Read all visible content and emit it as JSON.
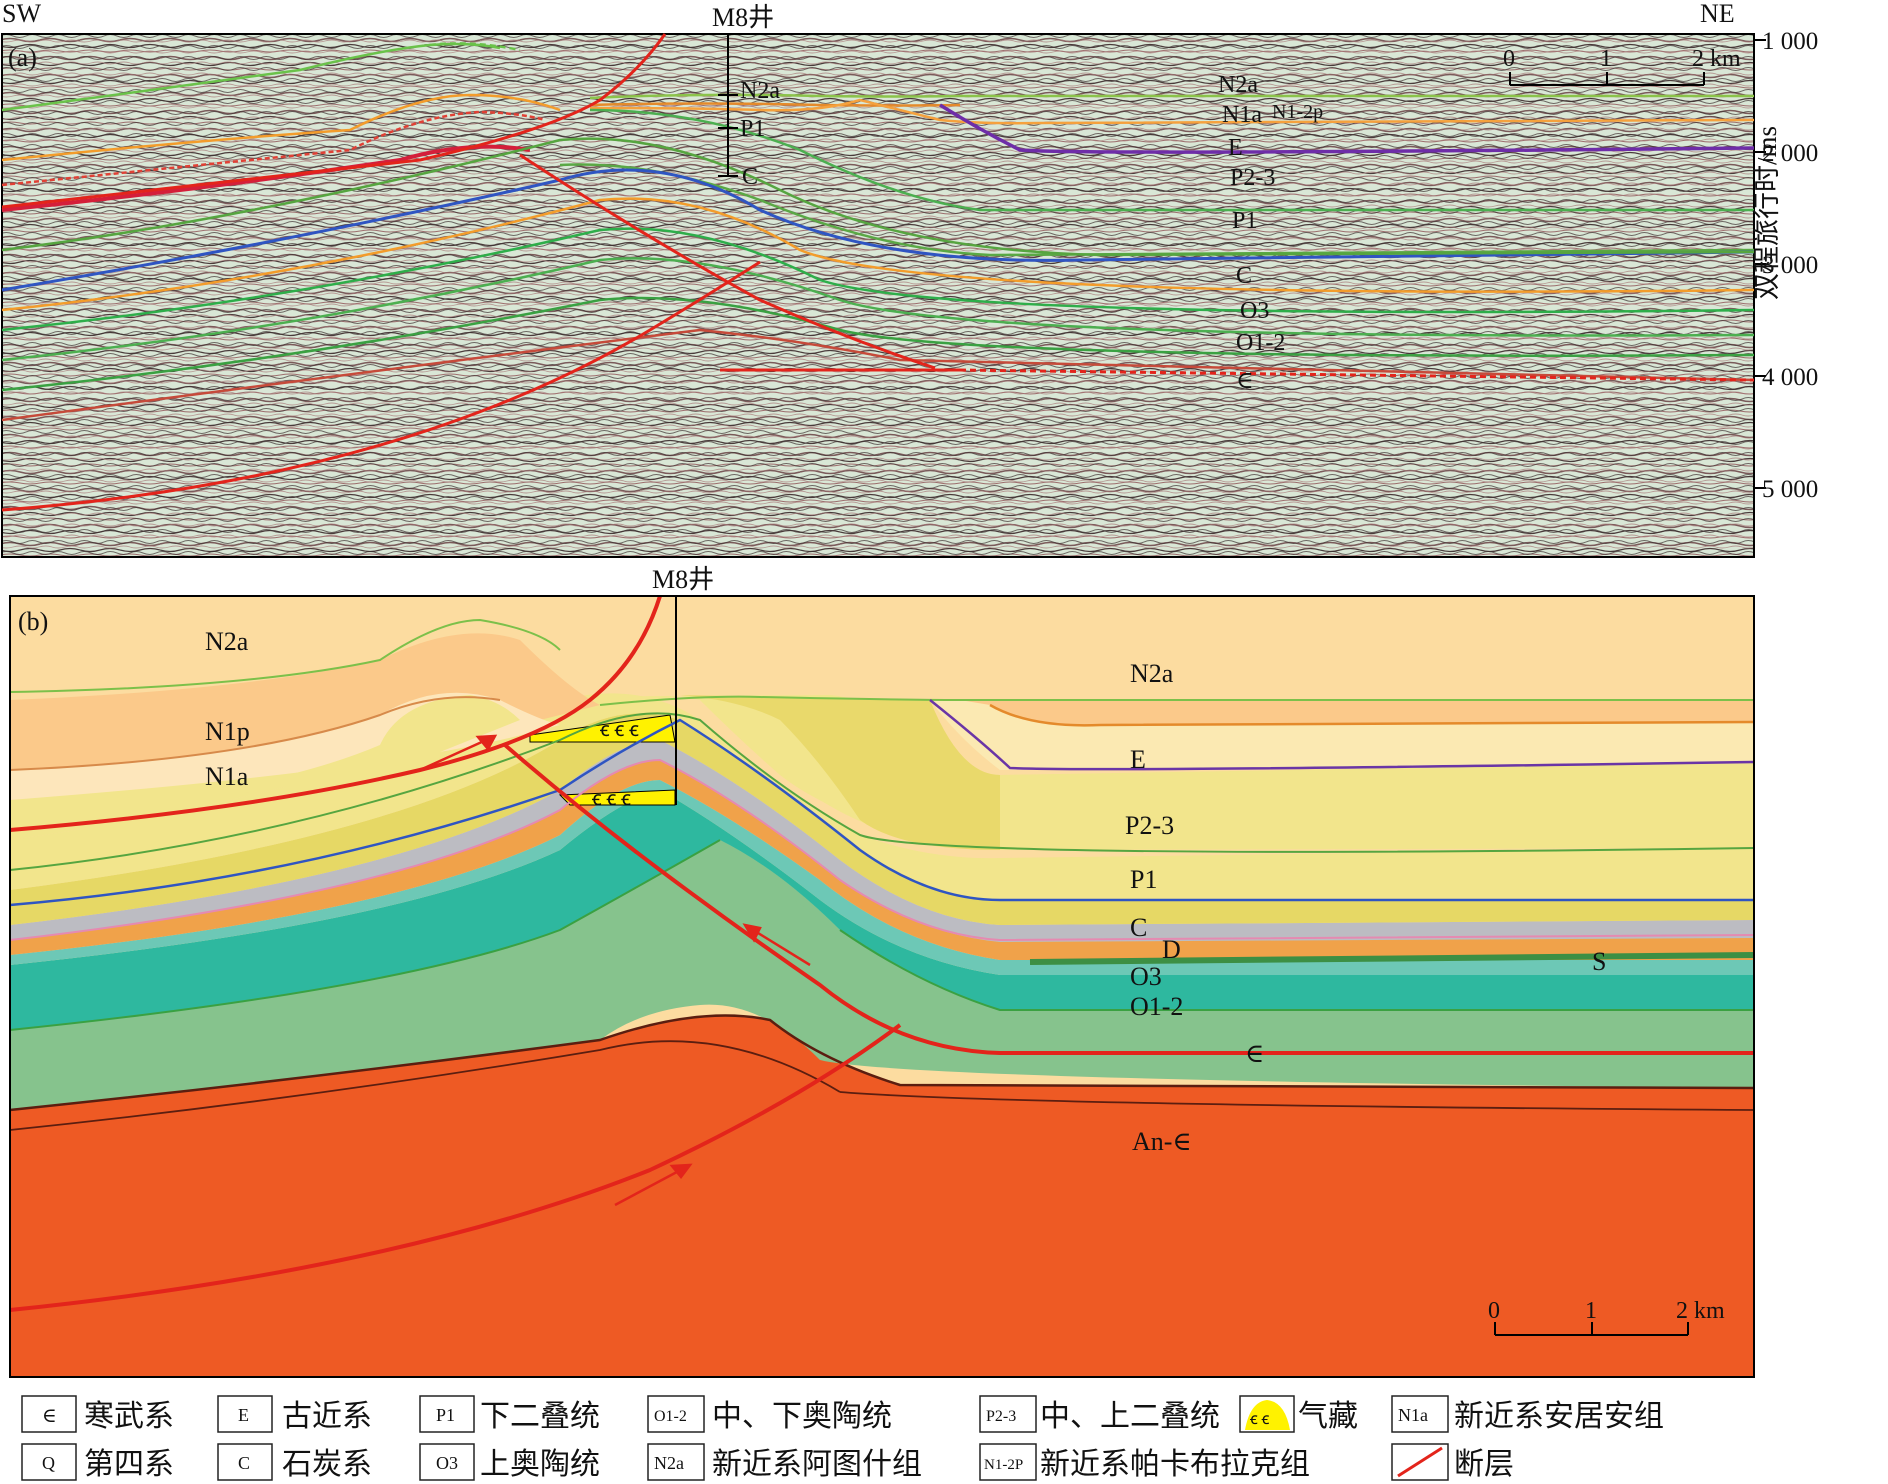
{
  "panel_a": {
    "label": "(a)",
    "dir_left": "SW",
    "dir_right": "NE",
    "well": "M8井",
    "axis_title": "双程旅行时/ms",
    "ticks": [
      "1 000",
      "2 000",
      "3 000",
      "4 000",
      "5 000"
    ],
    "scale": {
      "t0": "0",
      "t1": "1",
      "t2": "2 km"
    },
    "strata_labels": {
      "n2a": "N2a",
      "n1a": "N1a",
      "n12p": "N1-2p",
      "e": "E",
      "p23": "P2-3",
      "p1": "P1",
      "c": "C",
      "o3": "O3",
      "o12": "O1-2",
      "cam": "∈",
      "well_n2a": "N2a",
      "well_p1": "P1",
      "well_c": "C"
    }
  },
  "panel_b": {
    "label": "(b)",
    "well": "M8井",
    "units": {
      "n2a_left": "N2a",
      "n1p": "N1p",
      "n1a": "N1a",
      "n2a_right": "N2a",
      "e": "E",
      "p23": "P2-3",
      "p1": "P1",
      "c": "C",
      "d": "D",
      "o3": "O3",
      "s": "S",
      "o12": "O1-2",
      "cam": "∈",
      "ancam": "An-∈"
    },
    "scale": {
      "t0": "0",
      "t1": "1",
      "t2": "2 km"
    },
    "colors": {
      "n2a": "#fcdca0",
      "n1p": "#fbc98a",
      "n1a": "#fde6bb",
      "e": "#fbe9b2",
      "p23": "#f2e58c",
      "p1": "#e6d865",
      "c": "#bcbcc2",
      "o3": "#6dc8b6",
      "o12": "#2eb89f",
      "cam": "#86c38d",
      "ancam": "#ee5a24",
      "fault": "#e3241b",
      "gas": "#fff200"
    }
  },
  "legend": [
    {
      "key": "∈",
      "label": "寒武系"
    },
    {
      "key": "E",
      "label": "古近系"
    },
    {
      "key": "P1",
      "label": "下二叠统"
    },
    {
      "key": "O1-2",
      "label": "中、下奥陶统"
    },
    {
      "key": "P2-3",
      "label": "中、上二叠统"
    },
    {
      "key": "gas",
      "label": "气藏"
    },
    {
      "key": "N1a",
      "label": "新近系安居安组"
    },
    {
      "key": "Q",
      "label": "第四系"
    },
    {
      "key": "C",
      "label": "石炭系"
    },
    {
      "key": "O3",
      "label": "上奥陶统"
    },
    {
      "key": "N2a",
      "label": "新近系阿图什组"
    },
    {
      "key": "N1-2P",
      "label": "新近系帕卡布拉克组"
    },
    {
      "key": "fault",
      "label": "断层"
    }
  ]
}
